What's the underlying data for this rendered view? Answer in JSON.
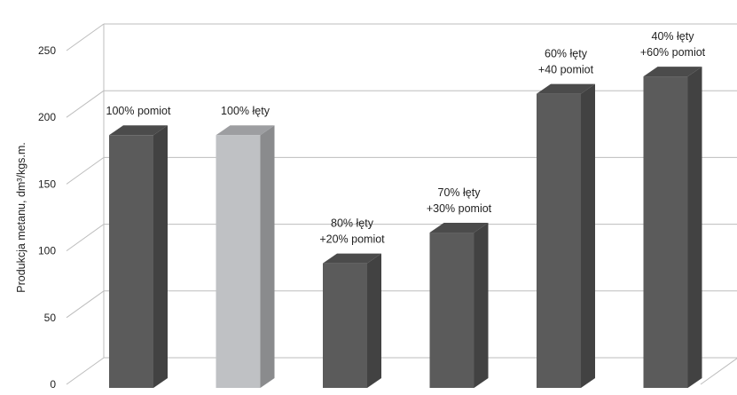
{
  "chart_data": {
    "type": "bar",
    "style": "3d-column",
    "title": "",
    "xlabel": "",
    "ylabel": "Produkcja metanu, dm³/kgs.m.",
    "ylim": [
      0,
      250
    ],
    "yticks": [
      "0",
      "50",
      "100",
      "150",
      "200",
      "250"
    ],
    "grid": true,
    "legend": "none",
    "categories": [
      [
        "100% pomiot"
      ],
      [
        "100% łęty"
      ],
      [
        "80% łęty",
        "+20% pomiot"
      ],
      [
        "70% łęty",
        "+30% pomiot"
      ],
      [
        "60% łęty",
        "+40 pomiot"
      ],
      [
        "40% łęty",
        "+60% pomiot"
      ]
    ],
    "values": [
      188,
      188,
      92,
      115,
      219,
      232
    ],
    "bar_colors": [
      "#5b5b5b",
      "#bfc1c4",
      "#5b5b5b",
      "#5b5b5b",
      "#5b5b5b",
      "#5b5b5b"
    ]
  }
}
